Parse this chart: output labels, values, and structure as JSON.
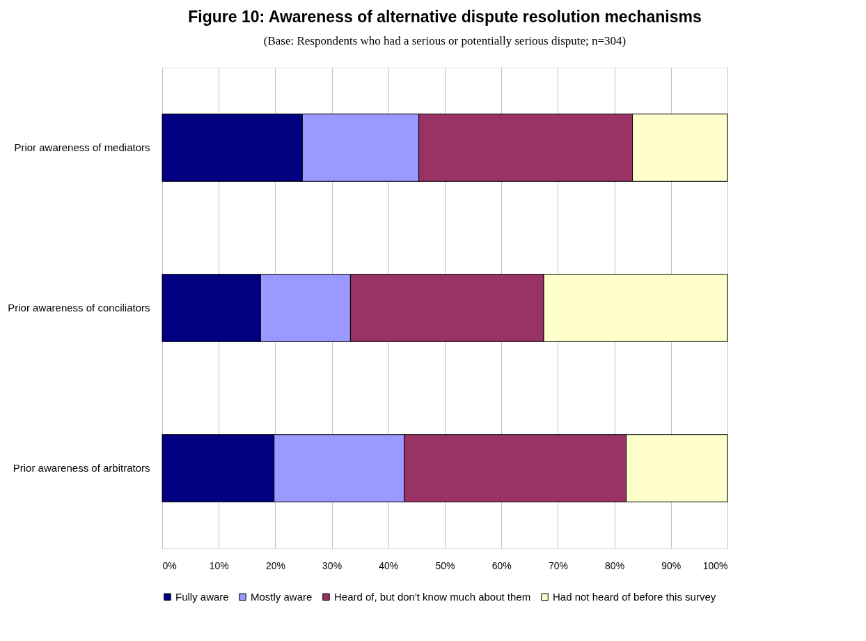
{
  "chart_data": {
    "type": "bar",
    "orientation": "horizontal",
    "stacked": true,
    "title": "Figure 10: Awareness of alternative dispute resolution mechanisms",
    "subtitle": "(Base: Respondents who had a serious or potentially serious dispute; n=304)",
    "categories": [
      "Prior awareness of mediators",
      "Prior awareness of conciliators",
      "Prior awareness of arbitrators"
    ],
    "series": [
      {
        "name": "Fully aware",
        "color": "#000080",
        "values": [
          24.8,
          17.4,
          19.8
        ]
      },
      {
        "name": "Mostly aware",
        "color": "#9999ff",
        "values": [
          20.6,
          15.9,
          23.0
        ]
      },
      {
        "name": "Heard of, but don't know much about them",
        "color": "#993366",
        "values": [
          37.8,
          34.2,
          39.3
        ]
      },
      {
        "name": "Had not heard of before this survey",
        "color": "#ffffcc",
        "values": [
          16.8,
          32.5,
          17.9
        ]
      }
    ],
    "xlim": [
      0,
      100
    ],
    "xticks": [
      {
        "value": 0,
        "label": "0%"
      },
      {
        "value": 10,
        "label": "10%"
      },
      {
        "value": 20,
        "label": "20%"
      },
      {
        "value": 30,
        "label": "30%"
      },
      {
        "value": 40,
        "label": "40%"
      },
      {
        "value": 50,
        "label": "50%"
      },
      {
        "value": 60,
        "label": "60%"
      },
      {
        "value": 70,
        "label": "70%"
      },
      {
        "value": 80,
        "label": "80%"
      },
      {
        "value": 90,
        "label": "90%"
      },
      {
        "value": 100,
        "label": "100%"
      }
    ],
    "grid": "x",
    "legend": "bottom"
  }
}
